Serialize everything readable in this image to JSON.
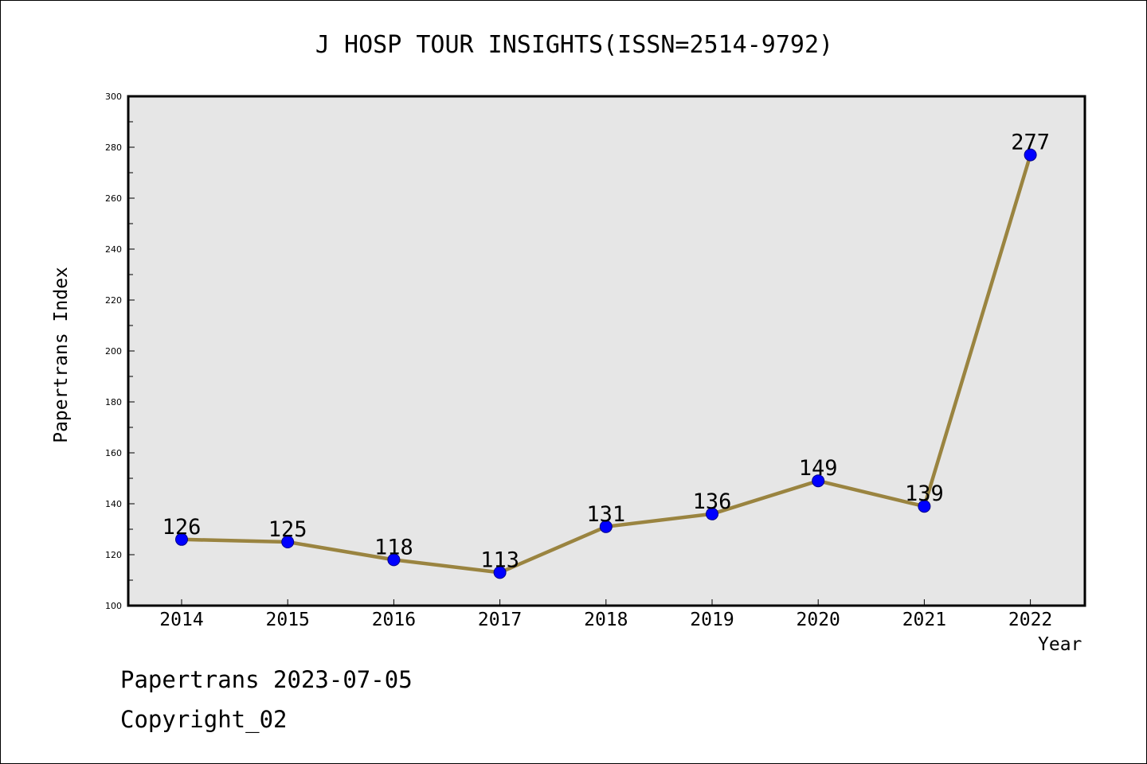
{
  "chart_data": {
    "type": "line",
    "title": "J HOSP TOUR INSIGHTS(ISSN=2514-9792)",
    "xlabel": "Year",
    "ylabel": "Papertrans Index",
    "categories": [
      "2014",
      "2015",
      "2016",
      "2017",
      "2018",
      "2019",
      "2020",
      "2021",
      "2022"
    ],
    "series": [
      {
        "values": [
          126,
          125,
          118,
          113,
          131,
          136,
          149,
          139,
          277
        ]
      }
    ],
    "ylim": [
      100,
      300
    ],
    "y_ticks": [
      100,
      120,
      140,
      160,
      180,
      200,
      220,
      240,
      260,
      280,
      300
    ],
    "grid": false,
    "data_labels": true,
    "colors": {
      "line": "#9a8440",
      "marker": "#0000ff",
      "plot_background": "#e6e6e6"
    }
  },
  "footer": {
    "date_line": "Papertrans 2023-07-05",
    "copyright_line": "Copyright_02"
  }
}
